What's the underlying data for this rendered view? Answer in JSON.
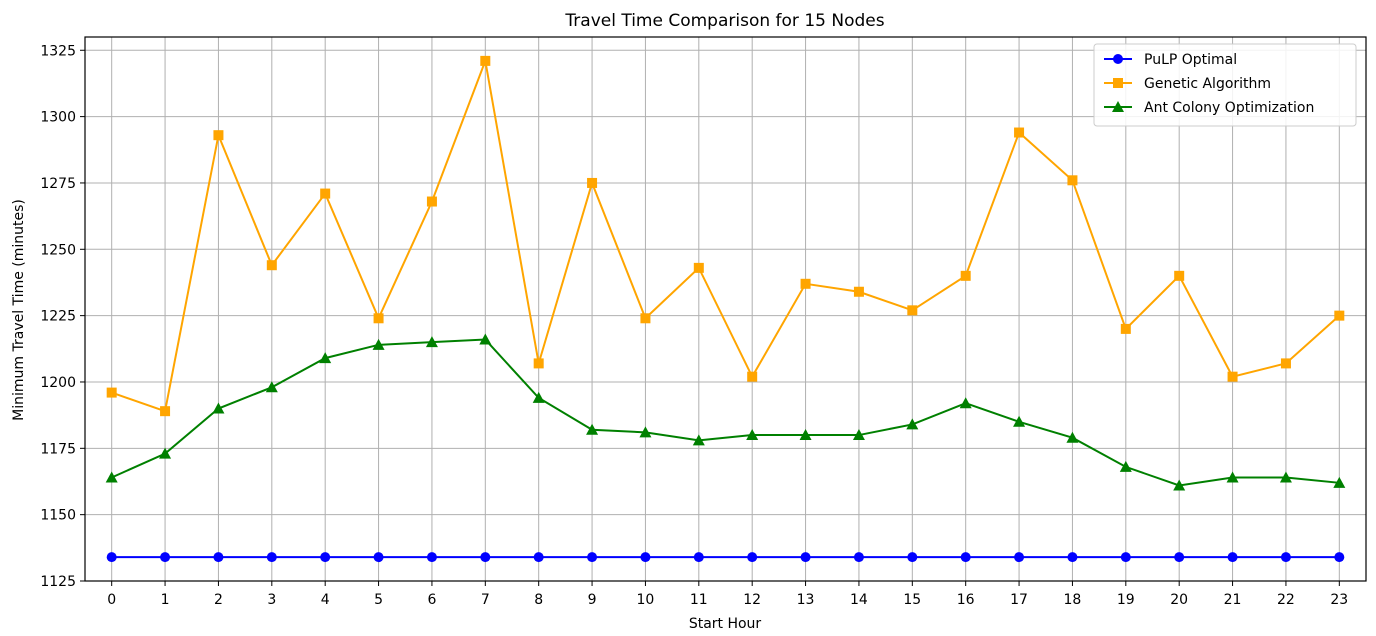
{
  "chart_data": {
    "type": "line",
    "title": "Travel Time Comparison for 15 Nodes",
    "xlabel": "Start Hour",
    "ylabel": "Minimum Travel Time (minutes)",
    "x": [
      0,
      1,
      2,
      3,
      4,
      5,
      6,
      7,
      8,
      9,
      10,
      11,
      12,
      13,
      14,
      15,
      16,
      17,
      18,
      19,
      20,
      21,
      22,
      23
    ],
    "xticks": [
      "0",
      "1",
      "2",
      "3",
      "4",
      "5",
      "6",
      "7",
      "8",
      "9",
      "10",
      "11",
      "12",
      "13",
      "14",
      "15",
      "16",
      "17",
      "18",
      "19",
      "20",
      "21",
      "22",
      "23"
    ],
    "xlim": [
      -0.5,
      23.5
    ],
    "yticks": [
      1125,
      1150,
      1175,
      1200,
      1225,
      1250,
      1275,
      1300,
      1325
    ],
    "ylim": [
      1125,
      1330
    ],
    "grid": true,
    "legend_position": "top-right",
    "series": [
      {
        "name": "PuLP Optimal",
        "color": "#0000ff",
        "marker": "circle",
        "values": [
          1134,
          1134,
          1134,
          1134,
          1134,
          1134,
          1134,
          1134,
          1134,
          1134,
          1134,
          1134,
          1134,
          1134,
          1134,
          1134,
          1134,
          1134,
          1134,
          1134,
          1134,
          1134,
          1134,
          1134
        ]
      },
      {
        "name": "Genetic Algorithm",
        "color": "#ffa500",
        "marker": "square",
        "values": [
          1196,
          1189,
          1293,
          1244,
          1271,
          1224,
          1268,
          1321,
          1207,
          1275,
          1224,
          1243,
          1202,
          1237,
          1234,
          1227,
          1240,
          1294,
          1276,
          1220,
          1240,
          1202,
          1207,
          1225
        ]
      },
      {
        "name": "Ant Colony Optimization",
        "color": "#008000",
        "marker": "triangle",
        "values": [
          1164,
          1173,
          1190,
          1198,
          1209,
          1214,
          1215,
          1216,
          1194,
          1182,
          1181,
          1178,
          1180,
          1180,
          1180,
          1184,
          1192,
          1185,
          1179,
          1168,
          1161,
          1164,
          1164,
          1162
        ]
      }
    ]
  }
}
